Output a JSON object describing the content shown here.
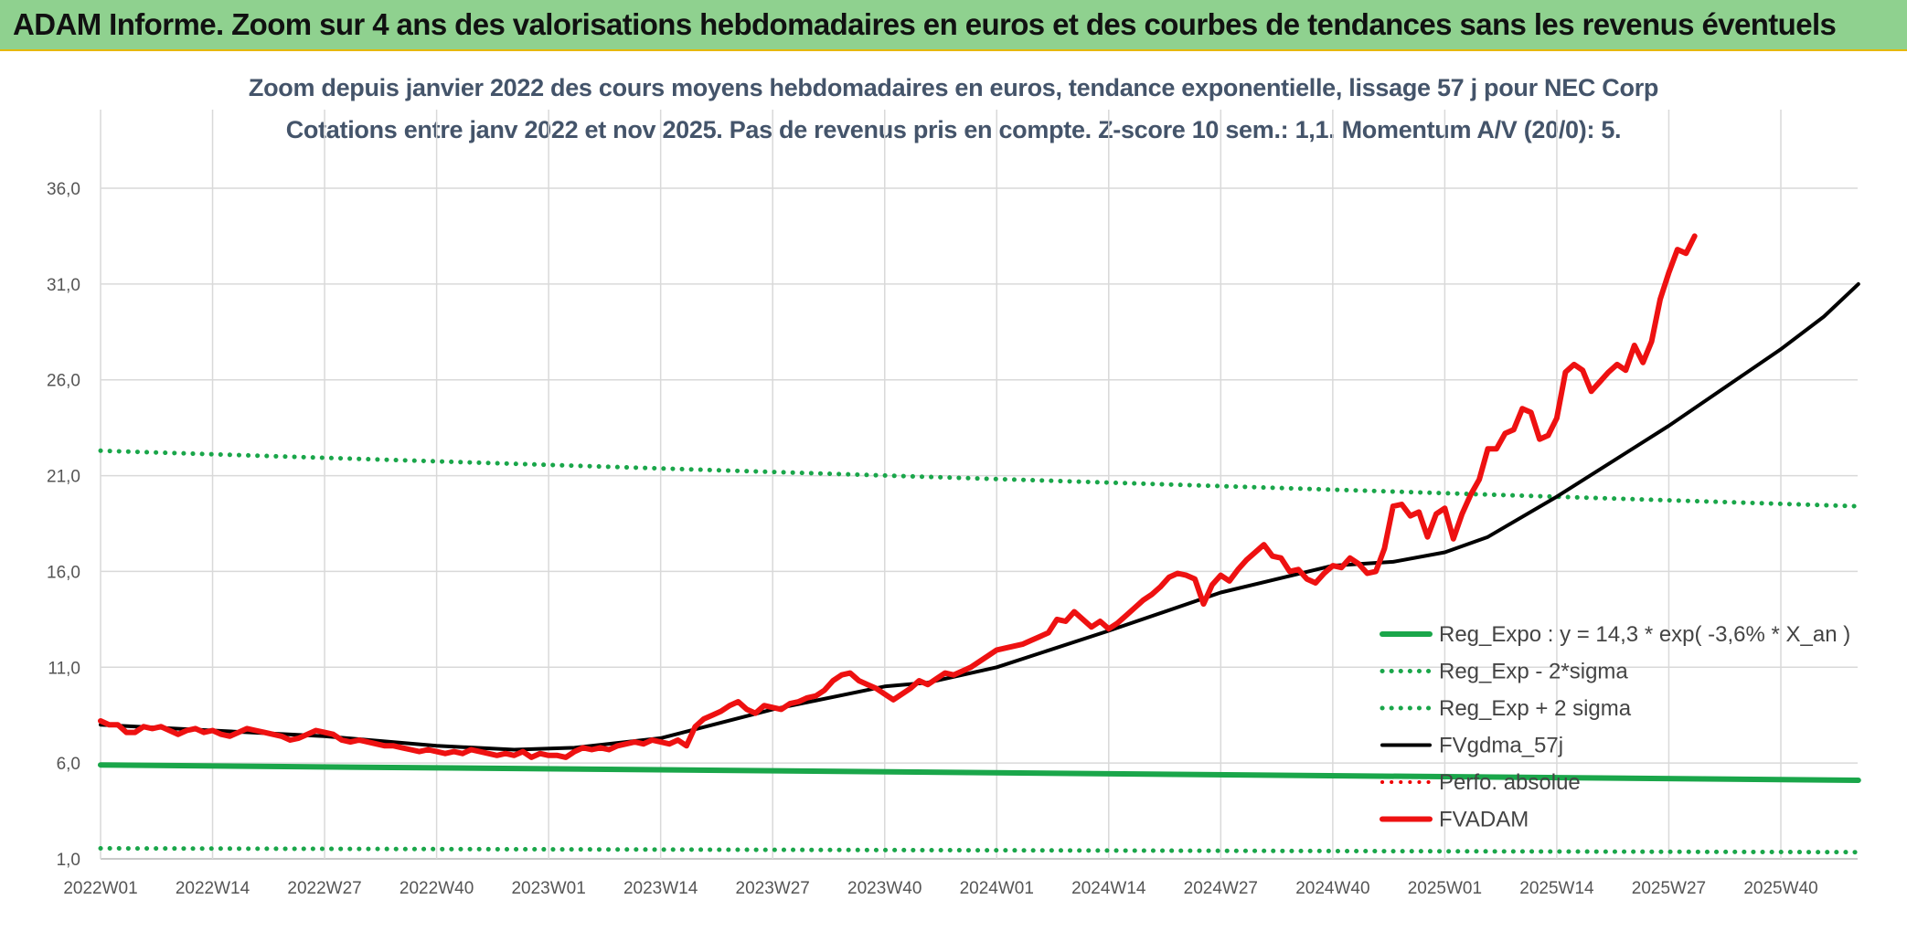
{
  "header": {
    "title": "ADAM Informe. Zoom sur 4 ans des valorisations hebdomadaires en euros et des courbes de tendances sans les revenus éventuels"
  },
  "chart_data": {
    "type": "line",
    "title": "Zoom depuis janvier 2022 des cours moyens hebdomadaires en euros, tendance exponentielle, lissage 57 j pour NEC Corp",
    "subtitle": "Cotations entre janv 2022 et nov 2025. Pas de revenus pris en compte. Z-score 10 sem.: 1,1. Momentum A/V (20/0): 5.",
    "ylim": [
      1,
      38
    ],
    "grid": true,
    "legend_position": "right",
    "y_ticks": [
      "1,0",
      "6,0",
      "11,0",
      "16,0",
      "21,0",
      "26,0",
      "31,0",
      "36,0"
    ],
    "y_tick_values": [
      1,
      6,
      11,
      16,
      21,
      26,
      31,
      36
    ],
    "x_ticks": [
      "2022W01",
      "2022W14",
      "2022W27",
      "2022W40",
      "2023W01",
      "2023W14",
      "2023W27",
      "2023W40",
      "2024W01",
      "2024W14",
      "2024W27",
      "2024W40",
      "2025W01",
      "2025W14",
      "2025W27",
      "2025W40"
    ],
    "x_tick_weeks": [
      0,
      13,
      26,
      39,
      52,
      65,
      78,
      91,
      104,
      117,
      130,
      143,
      156,
      169,
      182,
      195
    ],
    "x_max_week": 204,
    "series": [
      {
        "name": "Reg_Expo : y = 14,3 * exp( -3,6% *  X_an )",
        "color": "#1aa64a",
        "style": "solid",
        "width": 6,
        "values_by_week": [
          [
            0,
            5.9
          ],
          [
            204,
            5.1
          ]
        ]
      },
      {
        "name": "Reg_Exp - 2*sigma",
        "color": "#1aa64a",
        "style": "dotted",
        "width": 5,
        "values_by_week": [
          [
            0,
            1.55
          ],
          [
            204,
            1.35
          ]
        ]
      },
      {
        "name": "Reg_Exp + 2 sigma",
        "color": "#1aa64a",
        "style": "dotted",
        "width": 5,
        "values_by_week": [
          [
            0,
            22.3
          ],
          [
            204,
            19.4
          ]
        ]
      },
      {
        "name": "FVgdma_57j",
        "color": "#000000",
        "style": "solid",
        "width": 4,
        "values_by_week": [
          [
            0,
            8.0
          ],
          [
            13,
            7.7
          ],
          [
            26,
            7.4
          ],
          [
            39,
            6.9
          ],
          [
            48,
            6.7
          ],
          [
            55,
            6.8
          ],
          [
            65,
            7.3
          ],
          [
            78,
            8.8
          ],
          [
            91,
            10.0
          ],
          [
            96,
            10.2
          ],
          [
            104,
            11.0
          ],
          [
            117,
            12.9
          ],
          [
            130,
            14.9
          ],
          [
            143,
            16.3
          ],
          [
            150,
            16.5
          ],
          [
            156,
            17.0
          ],
          [
            161,
            17.8
          ],
          [
            169,
            19.9
          ],
          [
            182,
            23.6
          ],
          [
            195,
            27.6
          ],
          [
            200,
            29.3
          ],
          [
            204,
            31.0
          ]
        ]
      },
      {
        "name": "Perfo. absolue",
        "color": "#ee0000",
        "style": "dotted",
        "width": 4,
        "values_by_week": []
      },
      {
        "name": "FVADAM",
        "color": "#ee1111",
        "style": "solid",
        "width": 6,
        "values_by_week": [
          [
            0,
            8.2
          ],
          [
            1,
            8.0
          ],
          [
            2,
            8.0
          ],
          [
            3,
            7.6
          ],
          [
            4,
            7.6
          ],
          [
            5,
            7.9
          ],
          [
            6,
            7.8
          ],
          [
            7,
            7.9
          ],
          [
            8,
            7.7
          ],
          [
            9,
            7.5
          ],
          [
            10,
            7.7
          ],
          [
            11,
            7.8
          ],
          [
            12,
            7.6
          ],
          [
            13,
            7.7
          ],
          [
            14,
            7.5
          ],
          [
            15,
            7.4
          ],
          [
            16,
            7.6
          ],
          [
            17,
            7.8
          ],
          [
            18,
            7.7
          ],
          [
            19,
            7.6
          ],
          [
            20,
            7.5
          ],
          [
            21,
            7.4
          ],
          [
            22,
            7.2
          ],
          [
            23,
            7.3
          ],
          [
            24,
            7.5
          ],
          [
            25,
            7.7
          ],
          [
            26,
            7.6
          ],
          [
            27,
            7.5
          ],
          [
            28,
            7.2
          ],
          [
            29,
            7.1
          ],
          [
            30,
            7.2
          ],
          [
            31,
            7.1
          ],
          [
            32,
            7.0
          ],
          [
            33,
            6.9
          ],
          [
            34,
            6.9
          ],
          [
            35,
            6.8
          ],
          [
            36,
            6.7
          ],
          [
            37,
            6.6
          ],
          [
            38,
            6.7
          ],
          [
            39,
            6.6
          ],
          [
            40,
            6.5
          ],
          [
            41,
            6.6
          ],
          [
            42,
            6.5
          ],
          [
            43,
            6.7
          ],
          [
            44,
            6.6
          ],
          [
            45,
            6.5
          ],
          [
            46,
            6.4
          ],
          [
            47,
            6.5
          ],
          [
            48,
            6.4
          ],
          [
            49,
            6.6
          ],
          [
            50,
            6.3
          ],
          [
            51,
            6.5
          ],
          [
            52,
            6.4
          ],
          [
            53,
            6.4
          ],
          [
            54,
            6.3
          ],
          [
            55,
            6.6
          ],
          [
            56,
            6.8
          ],
          [
            57,
            6.7
          ],
          [
            58,
            6.8
          ],
          [
            59,
            6.7
          ],
          [
            60,
            6.9
          ],
          [
            61,
            7.0
          ],
          [
            62,
            7.1
          ],
          [
            63,
            7.0
          ],
          [
            64,
            7.2
          ],
          [
            65,
            7.1
          ],
          [
            66,
            7.0
          ],
          [
            67,
            7.2
          ],
          [
            68,
            6.9
          ],
          [
            69,
            7.9
          ],
          [
            70,
            8.3
          ],
          [
            71,
            8.5
          ],
          [
            72,
            8.7
          ],
          [
            73,
            9.0
          ],
          [
            74,
            9.2
          ],
          [
            75,
            8.8
          ],
          [
            76,
            8.6
          ],
          [
            77,
            9.0
          ],
          [
            78,
            8.9
          ],
          [
            79,
            8.8
          ],
          [
            80,
            9.1
          ],
          [
            81,
            9.2
          ],
          [
            82,
            9.4
          ],
          [
            83,
            9.5
          ],
          [
            84,
            9.8
          ],
          [
            85,
            10.3
          ],
          [
            86,
            10.6
          ],
          [
            87,
            10.7
          ],
          [
            88,
            10.3
          ],
          [
            89,
            10.1
          ],
          [
            90,
            9.9
          ],
          [
            91,
            9.6
          ],
          [
            92,
            9.3
          ],
          [
            93,
            9.6
          ],
          [
            94,
            9.9
          ],
          [
            95,
            10.3
          ],
          [
            96,
            10.1
          ],
          [
            97,
            10.4
          ],
          [
            98,
            10.7
          ],
          [
            99,
            10.6
          ],
          [
            100,
            10.8
          ],
          [
            101,
            11.0
          ],
          [
            102,
            11.3
          ],
          [
            103,
            11.6
          ],
          [
            104,
            11.9
          ],
          [
            105,
            12.0
          ],
          [
            106,
            12.1
          ],
          [
            107,
            12.2
          ],
          [
            108,
            12.4
          ],
          [
            109,
            12.6
          ],
          [
            110,
            12.8
          ],
          [
            111,
            13.5
          ],
          [
            112,
            13.4
          ],
          [
            113,
            13.9
          ],
          [
            114,
            13.5
          ],
          [
            115,
            13.1
          ],
          [
            116,
            13.4
          ],
          [
            117,
            13.0
          ],
          [
            118,
            13.3
          ],
          [
            119,
            13.7
          ],
          [
            120,
            14.1
          ],
          [
            121,
            14.5
          ],
          [
            122,
            14.8
          ],
          [
            123,
            15.2
          ],
          [
            124,
            15.7
          ],
          [
            125,
            15.9
          ],
          [
            126,
            15.8
          ],
          [
            127,
            15.6
          ],
          [
            128,
            14.3
          ],
          [
            129,
            15.3
          ],
          [
            130,
            15.8
          ],
          [
            131,
            15.5
          ],
          [
            132,
            16.1
          ],
          [
            133,
            16.6
          ],
          [
            134,
            17.0
          ],
          [
            135,
            17.4
          ],
          [
            136,
            16.8
          ],
          [
            137,
            16.7
          ],
          [
            138,
            16.0
          ],
          [
            139,
            16.1
          ],
          [
            140,
            15.6
          ],
          [
            141,
            15.4
          ],
          [
            142,
            15.9
          ],
          [
            143,
            16.3
          ],
          [
            144,
            16.2
          ],
          [
            145,
            16.7
          ],
          [
            146,
            16.4
          ],
          [
            147,
            15.9
          ],
          [
            148,
            16.0
          ],
          [
            149,
            17.2
          ],
          [
            150,
            19.4
          ],
          [
            151,
            19.5
          ],
          [
            152,
            18.9
          ],
          [
            153,
            19.1
          ],
          [
            154,
            17.8
          ],
          [
            155,
            19.0
          ],
          [
            156,
            19.3
          ],
          [
            157,
            17.7
          ],
          [
            158,
            19.0
          ],
          [
            159,
            20.0
          ],
          [
            160,
            20.8
          ],
          [
            161,
            22.4
          ],
          [
            162,
            22.4
          ],
          [
            163,
            23.2
          ],
          [
            164,
            23.4
          ],
          [
            165,
            24.5
          ],
          [
            166,
            24.3
          ],
          [
            167,
            22.9
          ],
          [
            168,
            23.1
          ],
          [
            169,
            24.0
          ],
          [
            170,
            26.4
          ],
          [
            171,
            26.8
          ],
          [
            172,
            26.5
          ],
          [
            173,
            25.4
          ],
          [
            174,
            25.9
          ],
          [
            175,
            26.4
          ],
          [
            176,
            26.8
          ],
          [
            177,
            26.5
          ],
          [
            178,
            27.8
          ],
          [
            179,
            26.9
          ],
          [
            180,
            28.0
          ],
          [
            181,
            30.2
          ],
          [
            182,
            31.6
          ],
          [
            183,
            32.8
          ],
          [
            184,
            32.6
          ],
          [
            185,
            33.5
          ]
        ]
      }
    ]
  }
}
